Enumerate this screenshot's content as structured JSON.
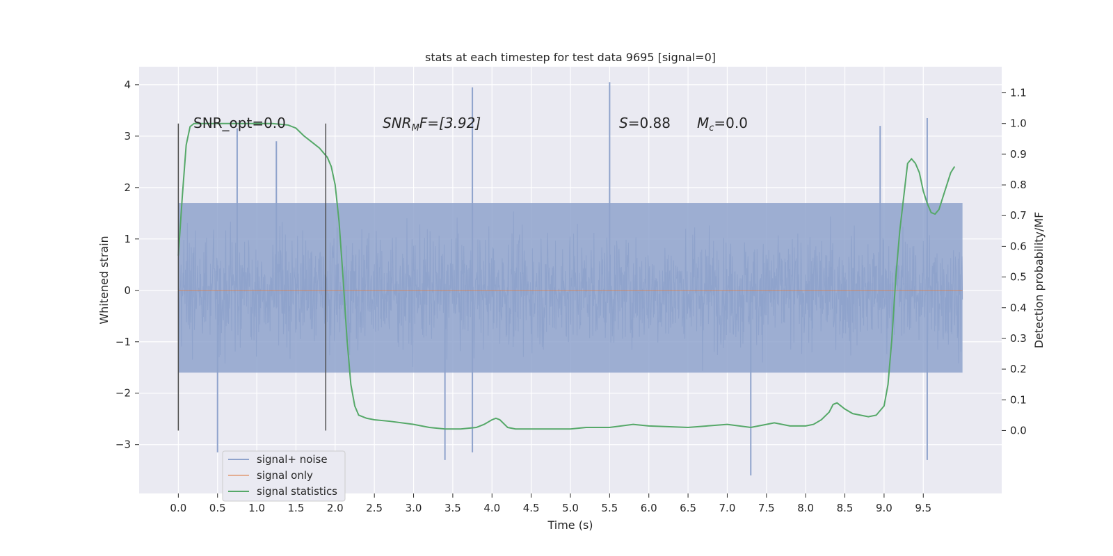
{
  "chart_data": {
    "type": "line",
    "title": "stats at each timestep for test data 9695 [signal=0]",
    "xlabel": "Time (s)",
    "ylabel": "Whitened strain",
    "ylabel_right": "Detection probability/MF",
    "xlim": [
      -0.5,
      10.5
    ],
    "ylim": [
      -3.95,
      4.35
    ],
    "ylim_right": [
      -0.205,
      1.185
    ],
    "x_ticks": [
      "0.0",
      "0.5",
      "1.0",
      "1.5",
      "2.0",
      "2.5",
      "3.0",
      "3.5",
      "4.0",
      "4.5",
      "5.0",
      "5.5",
      "6.0",
      "6.5",
      "7.0",
      "7.5",
      "8.0",
      "8.5",
      "9.0",
      "9.5"
    ],
    "y_ticks": [
      "-3",
      "-2",
      "-1",
      "0",
      "1",
      "2",
      "3",
      "4"
    ],
    "y_ticks_right": [
      "0.0",
      "0.1",
      "0.2",
      "0.3",
      "0.4",
      "0.5",
      "0.6",
      "0.7",
      "0.8",
      "0.9",
      "1.0",
      "1.1"
    ],
    "grid": true,
    "legend_placement": "lower-left",
    "colors": {
      "background": "#eaeaf2",
      "grid": "#ffffff",
      "noise": "#8fa3cc",
      "signal_only": "#dd8452",
      "statistics": "#55a868",
      "vline": "#4c4c4c"
    },
    "annotations": {
      "snr_opt": "SNR_opt=0.0",
      "snr_mf_base": "SNR",
      "snr_mf_sub": "M",
      "snr_mf_tail": "F=[3.92]",
      "s_label": "S",
      "s_value": "=0.88",
      "mc_label": "M",
      "mc_sub": "c",
      "mc_value": "=0.0"
    },
    "vertical_markers_x": [
      0.0,
      1.88
    ],
    "noise_envelope": {
      "x": [
        0.0,
        10.0
      ],
      "typical_min": -1.6,
      "typical_max": 1.7,
      "notable_peaks": [
        {
          "x": 0.5,
          "y": -3.15
        },
        {
          "x": 0.75,
          "y": 3.15
        },
        {
          "x": 1.25,
          "y": 2.9
        },
        {
          "x": 3.4,
          "y": -3.3
        },
        {
          "x": 3.75,
          "y": 3.95
        },
        {
          "x": 3.75,
          "y": -3.15
        },
        {
          "x": 5.5,
          "y": 4.05
        },
        {
          "x": 7.3,
          "y": -3.6
        },
        {
          "x": 8.95,
          "y": 3.2
        },
        {
          "x": 9.55,
          "y": 3.35
        },
        {
          "x": 9.55,
          "y": -3.3
        }
      ]
    },
    "series": [
      {
        "name": "signal+ noise",
        "kind": "noise"
      },
      {
        "name": "signal only",
        "x": [
          0.0,
          10.0
        ],
        "y": [
          0.0,
          0.0
        ]
      },
      {
        "name": "signal statistics",
        "axis": "right",
        "x": [
          0.0,
          0.05,
          0.1,
          0.15,
          0.2,
          0.3,
          0.5,
          0.8,
          1.0,
          1.2,
          1.4,
          1.5,
          1.6,
          1.7,
          1.8,
          1.9,
          1.95,
          2.0,
          2.05,
          2.1,
          2.15,
          2.2,
          2.25,
          2.3,
          2.4,
          2.5,
          2.7,
          3.0,
          3.2,
          3.4,
          3.6,
          3.8,
          3.9,
          4.0,
          4.05,
          4.1,
          4.2,
          4.3,
          4.4,
          4.5,
          5.0,
          5.2,
          5.5,
          5.8,
          6.0,
          6.5,
          7.0,
          7.3,
          7.5,
          7.6,
          7.8,
          8.0,
          8.1,
          8.2,
          8.3,
          8.35,
          8.4,
          8.5,
          8.6,
          8.7,
          8.8,
          8.9,
          9.0,
          9.05,
          9.1,
          9.15,
          9.2,
          9.3,
          9.35,
          9.4,
          9.45,
          9.5,
          9.55,
          9.6,
          9.65,
          9.7,
          9.75,
          9.8,
          9.85,
          9.9
        ],
        "y": [
          0.57,
          0.76,
          0.93,
          0.99,
          1.0,
          1.0,
          1.0,
          1.0,
          1.0,
          1.0,
          0.995,
          0.985,
          0.96,
          0.94,
          0.92,
          0.89,
          0.86,
          0.8,
          0.68,
          0.5,
          0.3,
          0.15,
          0.08,
          0.05,
          0.04,
          0.035,
          0.03,
          0.02,
          0.01,
          0.005,
          0.005,
          0.01,
          0.02,
          0.035,
          0.04,
          0.035,
          0.01,
          0.005,
          0.005,
          0.005,
          0.005,
          0.01,
          0.01,
          0.02,
          0.015,
          0.01,
          0.02,
          0.01,
          0.02,
          0.025,
          0.015,
          0.015,
          0.02,
          0.035,
          0.06,
          0.085,
          0.09,
          0.07,
          0.055,
          0.05,
          0.045,
          0.05,
          0.08,
          0.15,
          0.3,
          0.5,
          0.65,
          0.87,
          0.885,
          0.87,
          0.84,
          0.78,
          0.74,
          0.71,
          0.705,
          0.72,
          0.76,
          0.8,
          0.84,
          0.86
        ]
      }
    ]
  }
}
